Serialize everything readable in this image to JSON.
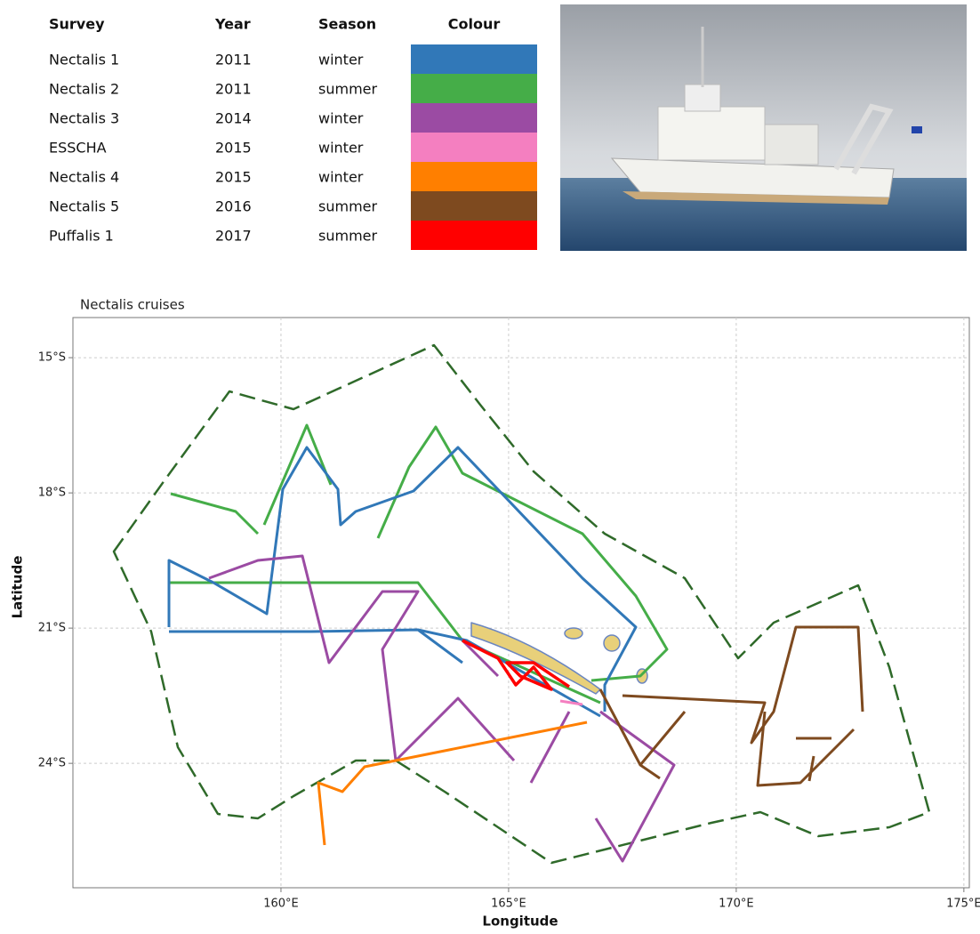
{
  "table": {
    "header": [
      "Survey",
      "Year",
      "Season",
      "Colour"
    ],
    "rows": [
      {
        "survey": "Nectalis 1",
        "year": 2011,
        "season": "winter",
        "color": "#3178b8"
      },
      {
        "survey": "Nectalis 2",
        "year": 2011,
        "season": "summer",
        "color": "#45ad48"
      },
      {
        "survey": "Nectalis 3",
        "year": 2014,
        "season": "winter",
        "color": "#9b4ba3"
      },
      {
        "survey": "ESSCHA",
        "year": 2015,
        "season": "winter",
        "color": "#f47fc0"
      },
      {
        "survey": "Nectalis 4",
        "year": 2015,
        "season": "winter",
        "color": "#ff7f00"
      },
      {
        "survey": "Nectalis 5",
        "year": 2016,
        "season": "summer",
        "color": "#7e4a1f"
      },
      {
        "survey": "Puffalis 1",
        "year": 2017,
        "season": "summer",
        "color": "#ff0000"
      }
    ]
  },
  "map": {
    "title": "Nectalis cruises",
    "xlabel": "Longitude",
    "ylabel": "Latitude",
    "xlim": [
      155.43,
      175.12
    ],
    "ylim": [
      -26.76,
      -14.11
    ],
    "xticks": [
      {
        "value": 160,
        "label": "160°E"
      },
      {
        "value": 165,
        "label": "165°E"
      },
      {
        "value": 170,
        "label": "170°E"
      },
      {
        "value": 175,
        "label": "175°E"
      }
    ],
    "yticks": [
      {
        "value": -15,
        "label": "15°S"
      },
      {
        "value": -18,
        "label": "18°S"
      },
      {
        "value": -21,
        "label": "21°S"
      },
      {
        "value": -24,
        "label": "24°S"
      }
    ],
    "grid": true
  }
}
